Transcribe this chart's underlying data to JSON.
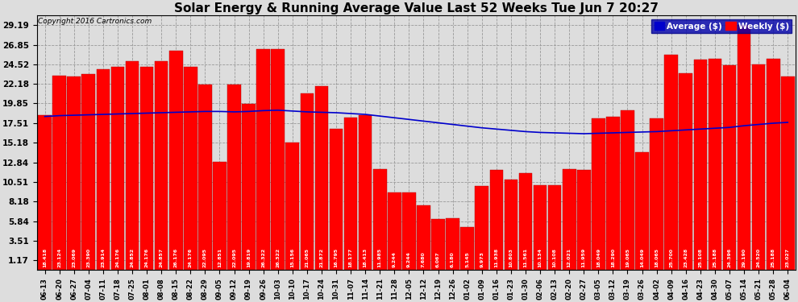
{
  "title": "Solar Energy & Running Average Value Last 52 Weeks Tue Jun 7 20:27",
  "copyright": "Copyright 2016 Cartronics.com",
  "bar_color": "#FF0000",
  "bar_edge_color": "#CC0000",
  "avg_line_color": "#0000CC",
  "background_color": "#DDDDDD",
  "plot_bg_color": "#DDDDDD",
  "grid_color": "#999999",
  "ytick_labels": [
    "1.17",
    "3.51",
    "5.84",
    "8.18",
    "10.51",
    "12.84",
    "15.18",
    "17.51",
    "19.85",
    "22.18",
    "24.52",
    "26.85",
    "29.19"
  ],
  "ytick_values": [
    1.17,
    3.51,
    5.84,
    8.18,
    10.51,
    12.84,
    15.18,
    17.51,
    19.85,
    22.18,
    24.52,
    26.85,
    29.19
  ],
  "ylim": [
    0.0,
    30.36
  ],
  "categories": [
    "06-13",
    "06-20",
    "06-27",
    "07-04",
    "07-11",
    "07-18",
    "07-25",
    "08-01",
    "08-08",
    "08-15",
    "08-22",
    "08-29",
    "09-05",
    "09-12",
    "09-19",
    "09-26",
    "10-03",
    "10-10",
    "10-17",
    "10-24",
    "10-31",
    "11-07",
    "11-14",
    "11-21",
    "11-28",
    "12-05",
    "12-12",
    "12-19",
    "12-26",
    "01-02",
    "01-09",
    "01-16",
    "01-23",
    "01-30",
    "02-06",
    "02-13",
    "02-20",
    "02-27",
    "03-05",
    "03-12",
    "03-19",
    "03-26",
    "04-02",
    "04-09",
    "04-16",
    "04-23",
    "04-30",
    "05-07",
    "05-14",
    "05-21",
    "05-28",
    "06-04"
  ],
  "values": [
    18.418,
    23.124,
    23.069,
    23.39,
    23.914,
    24.176,
    24.852,
    24.176,
    24.857,
    26.176,
    24.176,
    22.095,
    12.851,
    22.095,
    19.819,
    26.322,
    26.322,
    15.156,
    21.065,
    21.872,
    16.795,
    18.177,
    18.413,
    11.985,
    9.244,
    9.244,
    7.68,
    6.067,
    6.18,
    5.145,
    9.973,
    11.938,
    10.803,
    11.561,
    10.134,
    10.108,
    12.021,
    11.959,
    18.049,
    18.29,
    19.065,
    14.049,
    18.065,
    25.7,
    23.428,
    25.108,
    25.188,
    24.396,
    29.19,
    24.52,
    25.188,
    23.027
  ],
  "avg_values": [
    18.3,
    18.4,
    18.45,
    18.5,
    18.55,
    18.6,
    18.65,
    18.7,
    18.75,
    18.8,
    18.85,
    18.9,
    18.9,
    18.85,
    18.9,
    19.0,
    19.05,
    18.95,
    18.85,
    18.8,
    18.75,
    18.65,
    18.55,
    18.35,
    18.15,
    17.95,
    17.75,
    17.55,
    17.35,
    17.15,
    16.95,
    16.8,
    16.65,
    16.5,
    16.4,
    16.35,
    16.3,
    16.25,
    16.3,
    16.35,
    16.4,
    16.45,
    16.5,
    16.6,
    16.7,
    16.8,
    16.9,
    17.0,
    17.2,
    17.35,
    17.5,
    17.6
  ],
  "legend_avg_label": "Average ($)",
  "legend_weekly_label": "Weekly ($)",
  "legend_avg_color": "#0000CC",
  "legend_weekly_color": "#FF0000",
  "text_color_in_bar": "#000000",
  "title_fontsize": 11,
  "bar_label_fontsize": 4.5,
  "xtick_fontsize": 6.0,
  "ytick_fontsize": 7.5
}
